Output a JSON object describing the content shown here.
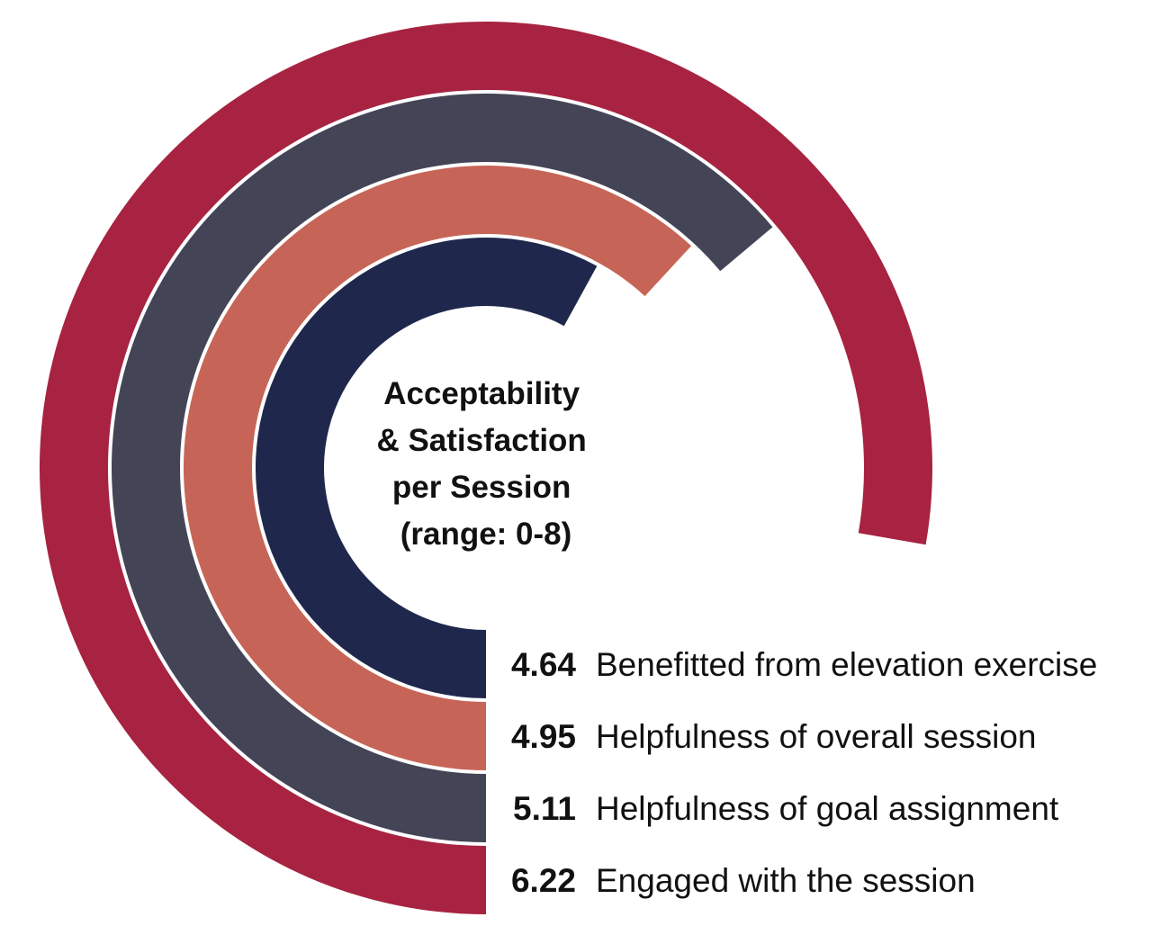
{
  "chart_data": {
    "type": "radial_bar",
    "title_lines": [
      "Acceptability",
      "& Satisfaction",
      "per Session",
      "(range: 0-8)"
    ],
    "range": [
      0,
      8
    ],
    "series": [
      {
        "name": "Benefitted from elevation exercise",
        "value": 4.64,
        "value_label": "4.64",
        "color": "#1f284c"
      },
      {
        "name": "Helpfulness of overall session",
        "value": 4.95,
        "value_label": "4.95",
        "color": "#c66557"
      },
      {
        "name": "Helpfulness of goal assignment",
        "value": 5.11,
        "value_label": "5.11",
        "color": "#444457"
      },
      {
        "name": "Engaged with the session",
        "value": 6.22,
        "value_label": "6.22",
        "color": "#a72341"
      }
    ]
  }
}
